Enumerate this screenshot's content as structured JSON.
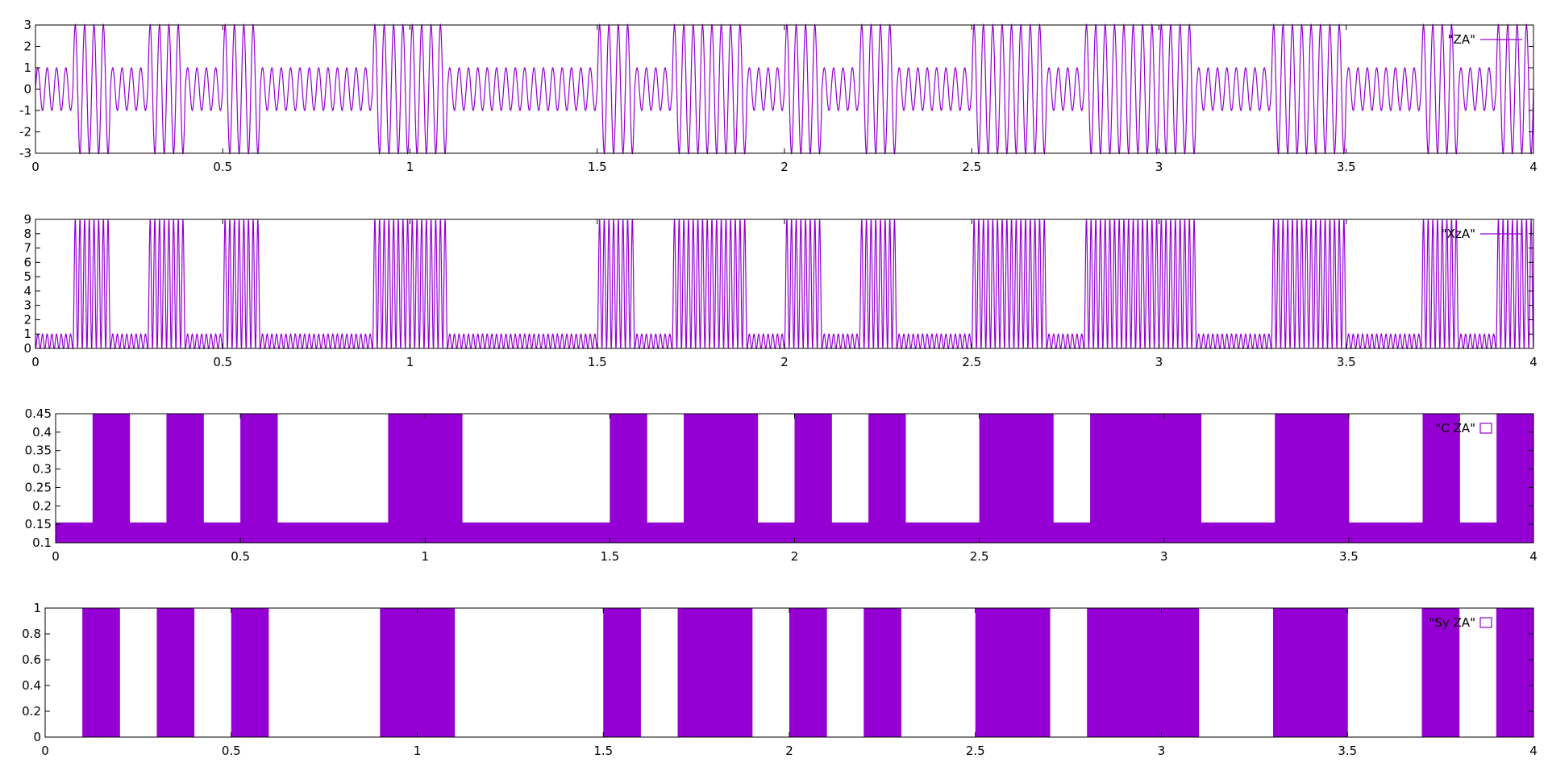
{
  "chart_data": [
    {
      "type": "line",
      "legend": "\"ZA\"",
      "legend_position": "top-right",
      "color": "#9400d3",
      "xlim": [
        0,
        4
      ],
      "ylim": [
        -3,
        3
      ],
      "xticks": [
        "0",
        "0.5",
        "1",
        "1.5",
        "2",
        "2.5",
        "3",
        "3.5",
        "4"
      ],
      "yticks": [
        "-3",
        "-2",
        "-1",
        "0",
        "1",
        "2",
        "3"
      ],
      "signal": "amplitude 1 (bit 0) or 3 (bit 1), 4 cycles per 0.1 bit interval",
      "bit_period": 0.1,
      "cycles_per_bit": 4,
      "amplitude_low": 1,
      "amplitude_high": 3,
      "grid": false
    },
    {
      "type": "line",
      "legend": "\"XzA\"",
      "legend_position": "top-right",
      "color": "#9400d3",
      "xlim": [
        0,
        4
      ],
      "ylim": [
        0,
        9
      ],
      "xticks": [
        "0",
        "0.5",
        "1",
        "1.5",
        "2",
        "2.5",
        "3",
        "3.5",
        "4"
      ],
      "yticks": [
        "0",
        "1",
        "2",
        "3",
        "4",
        "5",
        "6",
        "7",
        "8",
        "9"
      ],
      "signal": "squared of first: peaks 1 (bit 0) or 9 (bit 1), 8 cycles per 0.1 bit interval",
      "peak_low": 1,
      "peak_high": 9,
      "grid": false
    },
    {
      "type": "area",
      "legend": "\"C   ZA\"",
      "legend_position": "top-right",
      "color": "#9400d3",
      "xlim": [
        0,
        4
      ],
      "ylim": [
        0.1,
        0.45
      ],
      "xticks": [
        "0",
        "0.5",
        "1",
        "1.5",
        "2",
        "2.5",
        "3",
        "3.5",
        "4"
      ],
      "yticks": [
        "0.1",
        "0.15",
        "0.2",
        "0.25",
        "0.3",
        "0.35",
        "0.4",
        "0.45"
      ],
      "level_low": 0.155,
      "level_high": 0.45,
      "grid": false
    },
    {
      "type": "area",
      "legend": "\"Sy   ZA\"",
      "legend_position": "top-right",
      "color": "#9400d3",
      "xlim": [
        0,
        4
      ],
      "ylim": [
        0,
        1
      ],
      "xticks": [
        "0",
        "0.5",
        "1",
        "1.5",
        "2",
        "2.5",
        "3",
        "3.5",
        "4"
      ],
      "yticks": [
        "0",
        "0.2",
        "0.4",
        "0.6",
        "0.8",
        "1"
      ],
      "level_low": 0,
      "level_high": 1,
      "grid": false
    }
  ],
  "bits": [
    0,
    1,
    0,
    1,
    0,
    1,
    0,
    0,
    0,
    1,
    1,
    0,
    0,
    0,
    0,
    1,
    0,
    1,
    1,
    0,
    1,
    0,
    1,
    0,
    0,
    1,
    1,
    0,
    1,
    1,
    1,
    0,
    0,
    1,
    1,
    0,
    0,
    1,
    0,
    1
  ]
}
